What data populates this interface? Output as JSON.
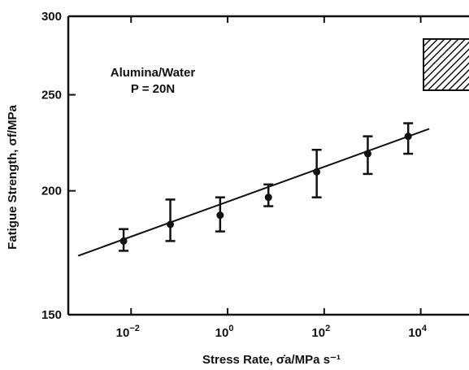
{
  "chart_data": {
    "type": "scatter",
    "title": "",
    "xlabel": "Stress Rate, σ̇a/MPa s⁻¹",
    "ylabel": "Fatigue Strength, σf/MPa",
    "x_scale": "log",
    "y_scale": "log",
    "xlim": [
      0.0005,
      100000
    ],
    "ylim": [
      150,
      300
    ],
    "x_ticks": [
      {
        "value": 0.01,
        "base": "10",
        "exp": "−2"
      },
      {
        "value": 1,
        "base": "10",
        "exp": "0"
      },
      {
        "value": 100,
        "base": "10",
        "exp": "2"
      },
      {
        "value": 10000,
        "base": "10",
        "exp": "4"
      }
    ],
    "y_ticks": [
      {
        "value": 150,
        "label": "150"
      },
      {
        "value": 200,
        "label": "200"
      },
      {
        "value": 250,
        "label": "250"
      },
      {
        "value": 300,
        "label": "300"
      }
    ],
    "grid": false,
    "annotation": {
      "line1": "Alumina/Water",
      "line2": "P = 20N"
    },
    "series": [
      {
        "points": [
          {
            "x": 0.007,
            "y": 178,
            "y_low": 174,
            "y_high": 183
          },
          {
            "x": 0.065,
            "y": 185,
            "y_low": 178,
            "y_high": 196
          },
          {
            "x": 0.7,
            "y": 189,
            "y_low": 182,
            "y_high": 197
          },
          {
            "x": 7,
            "y": 197,
            "y_low": 193,
            "y_high": 203
          },
          {
            "x": 70,
            "y": 209,
            "y_low": 197,
            "y_high": 220
          },
          {
            "x": 800,
            "y": 218,
            "y_low": 208,
            "y_high": 227
          },
          {
            "x": 5500,
            "y": 227,
            "y_low": 218,
            "y_high": 234
          }
        ]
      }
    ],
    "fit_line": {
      "x": [
        0.0008,
        15000
      ],
      "y": [
        172,
        231
      ]
    }
  }
}
